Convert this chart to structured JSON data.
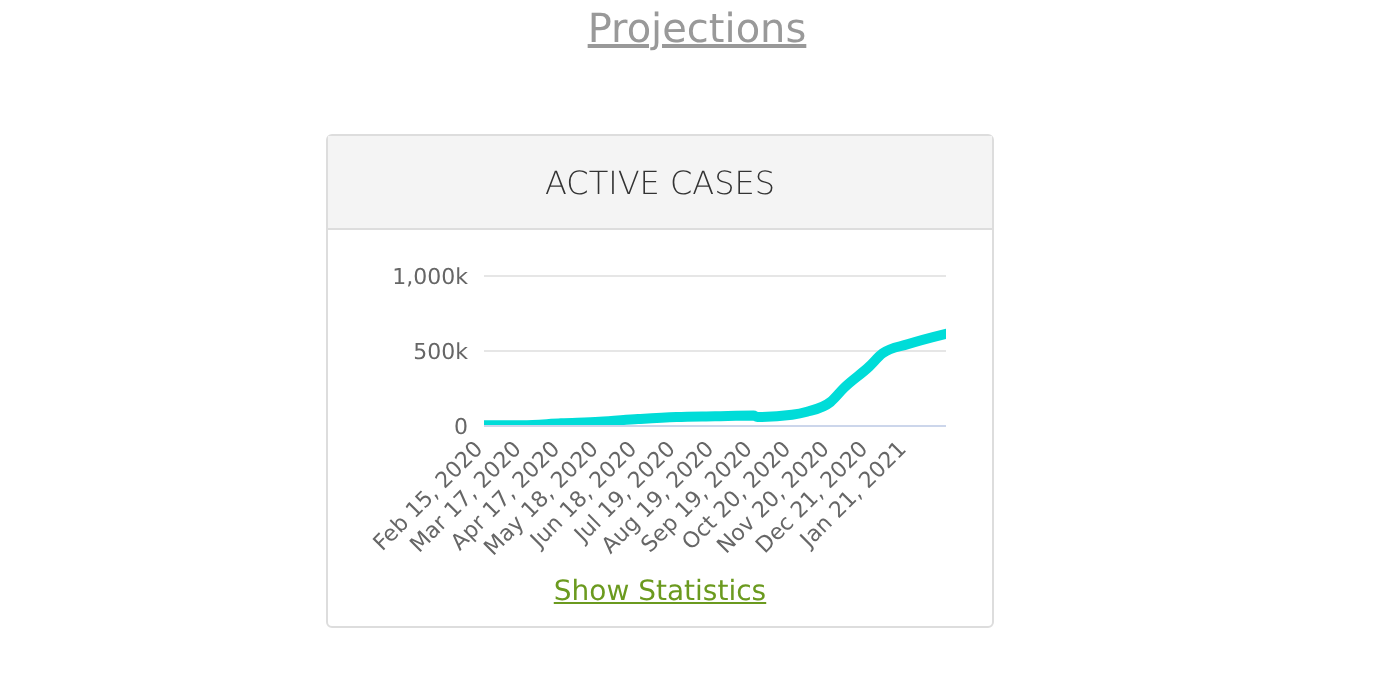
{
  "chart_data": {
    "type": "line",
    "title": "ACTIVE CASES",
    "annotations": [
      "Projections",
      "Show Statistics"
    ],
    "x": [
      "2020-02-15",
      "2020-03-17",
      "2020-04-17",
      "2020-05-18",
      "2020-06-18",
      "2020-07-19",
      "2020-08-19",
      "2020-09-19",
      "2020-09-22",
      "2020-10-20",
      "2020-11-01",
      "2020-11-20",
      "2020-12-01",
      "2020-12-21",
      "2021-01-01",
      "2021-01-21",
      "2021-02-21"
    ],
    "series": [
      {
        "color": "#00dcd8",
        "values": [
          5000,
          5000,
          18000,
          28000,
          46000,
          60000,
          65000,
          70000,
          60000,
          75000,
          95000,
          160000,
          255000,
          395000,
          485000,
          545000,
          615000
        ]
      }
    ],
    "xlim": [
      "2020-02-15",
      "2021-02-21"
    ],
    "xticks": [
      {
        "value": "2020-02-15",
        "label": "Feb 15, 2020"
      },
      {
        "value": "2020-03-17",
        "label": "Mar 17, 2020"
      },
      {
        "value": "2020-04-17",
        "label": "Apr 17, 2020"
      },
      {
        "value": "2020-05-18",
        "label": "May 18, 2020"
      },
      {
        "value": "2020-06-18",
        "label": "Jun 18, 2020"
      },
      {
        "value": "2020-07-19",
        "label": "Jul 19, 2020"
      },
      {
        "value": "2020-08-19",
        "label": "Aug 19, 2020"
      },
      {
        "value": "2020-09-19",
        "label": "Sep 19, 2020"
      },
      {
        "value": "2020-10-20",
        "label": "Oct 20, 2020"
      },
      {
        "value": "2020-11-20",
        "label": "Nov 20, 2020"
      },
      {
        "value": "2020-12-21",
        "label": "Dec 21, 2020"
      },
      {
        "value": "2021-01-21",
        "label": "Jan 21, 2021"
      }
    ],
    "ylim": [
      0,
      1000000
    ],
    "yticks": [
      {
        "value": 0,
        "label": "0"
      },
      {
        "value": 500000,
        "label": "500k"
      },
      {
        "value": 1000000,
        "label": "1,000k"
      }
    ],
    "grid": "y",
    "legend": false,
    "marker": "none",
    "line_style": "solid"
  }
}
